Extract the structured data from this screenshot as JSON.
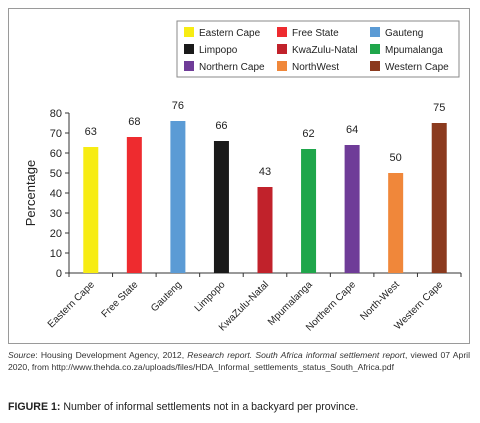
{
  "chart_data": {
    "type": "bar",
    "categories": [
      "Eastern Cape",
      "Free State",
      "Gauteng",
      "Limpopo",
      "KwaZulu-Natal",
      "Mpumalanga",
      "Northern Cape",
      "North-West",
      "Western Cape"
    ],
    "values": [
      63,
      68,
      76,
      66,
      43,
      62,
      64,
      50,
      75
    ],
    "colors": [
      "#f7ec13",
      "#ee2b2f",
      "#5b9bd5",
      "#1a1a1a",
      "#c1222b",
      "#1fa64b",
      "#6f3c98",
      "#f0873a",
      "#8b3a1e"
    ],
    "ylabel": "Percentage",
    "ylim": [
      0,
      80
    ],
    "yticks": [
      0,
      10,
      20,
      30,
      40,
      50,
      60,
      70,
      80
    ],
    "grid": false,
    "legend_position": "top",
    "legend": [
      {
        "label": "Eastern Cape",
        "color": "#f7ec13"
      },
      {
        "label": "Free State",
        "color": "#ee2b2f"
      },
      {
        "label": "Gauteng",
        "color": "#5b9bd5"
      },
      {
        "label": "Limpopo",
        "color": "#1a1a1a"
      },
      {
        "label": "KwaZulu-Natal",
        "color": "#c1222b"
      },
      {
        "label": "Mpumalanga",
        "color": "#1fa64b"
      },
      {
        "label": "Northern Cape",
        "color": "#6f3c98"
      },
      {
        "label": "NorthWest",
        "color": "#f0873a"
      },
      {
        "label": "Western Cape",
        "color": "#8b3a1e"
      }
    ]
  },
  "source": {
    "label": "Source",
    "agency": ": Housing Development Agency, 2012, ",
    "report_title": "Research report. South Africa informal settlement report",
    "rest": ", viewed 07 April 2020, from http://www.thehda.co.za/uploads/files/HDA_Informal_settlements_status_South_Africa.pdf"
  },
  "caption": {
    "label": "FIGURE 1:",
    "text": " Number of informal settlements not in a backyard per province."
  }
}
